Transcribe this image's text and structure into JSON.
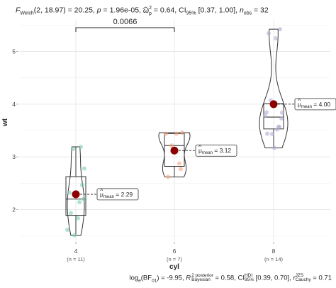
{
  "header": {
    "stat_title": {
      "F": "F",
      "F_sub": "Welch",
      "df_value": "(2, 18.97) = 20.25, ",
      "p_label": "p",
      "p_value": " = 1.96e-05, ",
      "omega": "ω",
      "omega_sub": "p",
      "omega_sup": "2",
      "es_value": " = 0.64, CI",
      "ci_sub": "95%",
      "ci_value": " [0.37, 1.00], ",
      "n_label": "n",
      "n_sub": "obs",
      "n_value": " = 32"
    }
  },
  "footer": {
    "stat_subtitle": {
      "log_prefix": "log",
      "log_sub": "e",
      "bf": "(BF",
      "bf_sub": "01",
      "bf_value": ") = -9.95, ",
      "r2": "R",
      "r2_sup": "2",
      "r2_label_sup": "posterior",
      "r2_label_sub": "Bayesian",
      "r2_value": " = 0.58, CI",
      "ci_sup": "HDI",
      "ci_sub": "95%",
      "ci_value": " [0.39, 0.70], ",
      "r": "r",
      "r_sup": "JZS",
      "r_sub": "Cauchy",
      "r_value": " = 0.71"
    }
  },
  "chart_data": {
    "type": "violin-box",
    "xlabel": "cyl",
    "ylabel": "wt",
    "categories": [
      "4",
      "6",
      "8"
    ],
    "n_labels": [
      "(n = 11)",
      "(n = 7)",
      "(n = 14)"
    ],
    "ylim": [
      1.4,
      5.6
    ],
    "yticks": [
      2,
      3,
      4,
      5
    ],
    "grid": true,
    "colors": {
      "points": [
        "#7fcdbb",
        "#f4a582",
        "#b2abd2"
      ],
      "mean": "#8b0000",
      "box": "#333333",
      "grid": "#e6e6e6"
    },
    "groups": [
      {
        "name": "4",
        "points": [
          2.32,
          3.19,
          3.15,
          2.2,
          1.615,
          1.835,
          2.465,
          1.935,
          2.14,
          1.513,
          2.78
        ],
        "box": {
          "min": 1.513,
          "q1": 1.89,
          "median": 2.2,
          "q3": 2.625,
          "max": 3.19
        },
        "mean": 2.29,
        "mean_label": "2.29",
        "violin_max": 3.19,
        "violin_min": 1.513
      },
      {
        "name": "6",
        "points": [
          2.62,
          2.875,
          3.215,
          3.46,
          3.44,
          3.44,
          2.77
        ],
        "box": {
          "min": 2.62,
          "q1": 2.82,
          "median": 3.215,
          "q3": 3.44,
          "max": 3.46
        },
        "mean": 3.12,
        "mean_label": "3.12",
        "violin_max": 3.46,
        "violin_min": 2.62
      },
      {
        "name": "8",
        "points": [
          3.44,
          3.57,
          4.07,
          3.73,
          3.78,
          5.25,
          5.424,
          5.345,
          3.52,
          3.435,
          3.84,
          3.845,
          3.17,
          3.57
        ],
        "box": {
          "min": 3.17,
          "q1": 3.53,
          "median": 3.755,
          "q3": 4.01,
          "max": 4.07
        },
        "outliers": [
          5.25,
          5.424,
          5.345
        ],
        "mean": 4.0,
        "mean_label": "4.00",
        "violin_max": 5.424,
        "violin_min": 3.17
      }
    ],
    "comparisons": [
      {
        "group1": "4",
        "group2": "6",
        "label": "0.0066"
      }
    ],
    "mean_label_prefix": "μ",
    "mean_label_sub": "mean",
    "mean_label_eq": " = "
  }
}
